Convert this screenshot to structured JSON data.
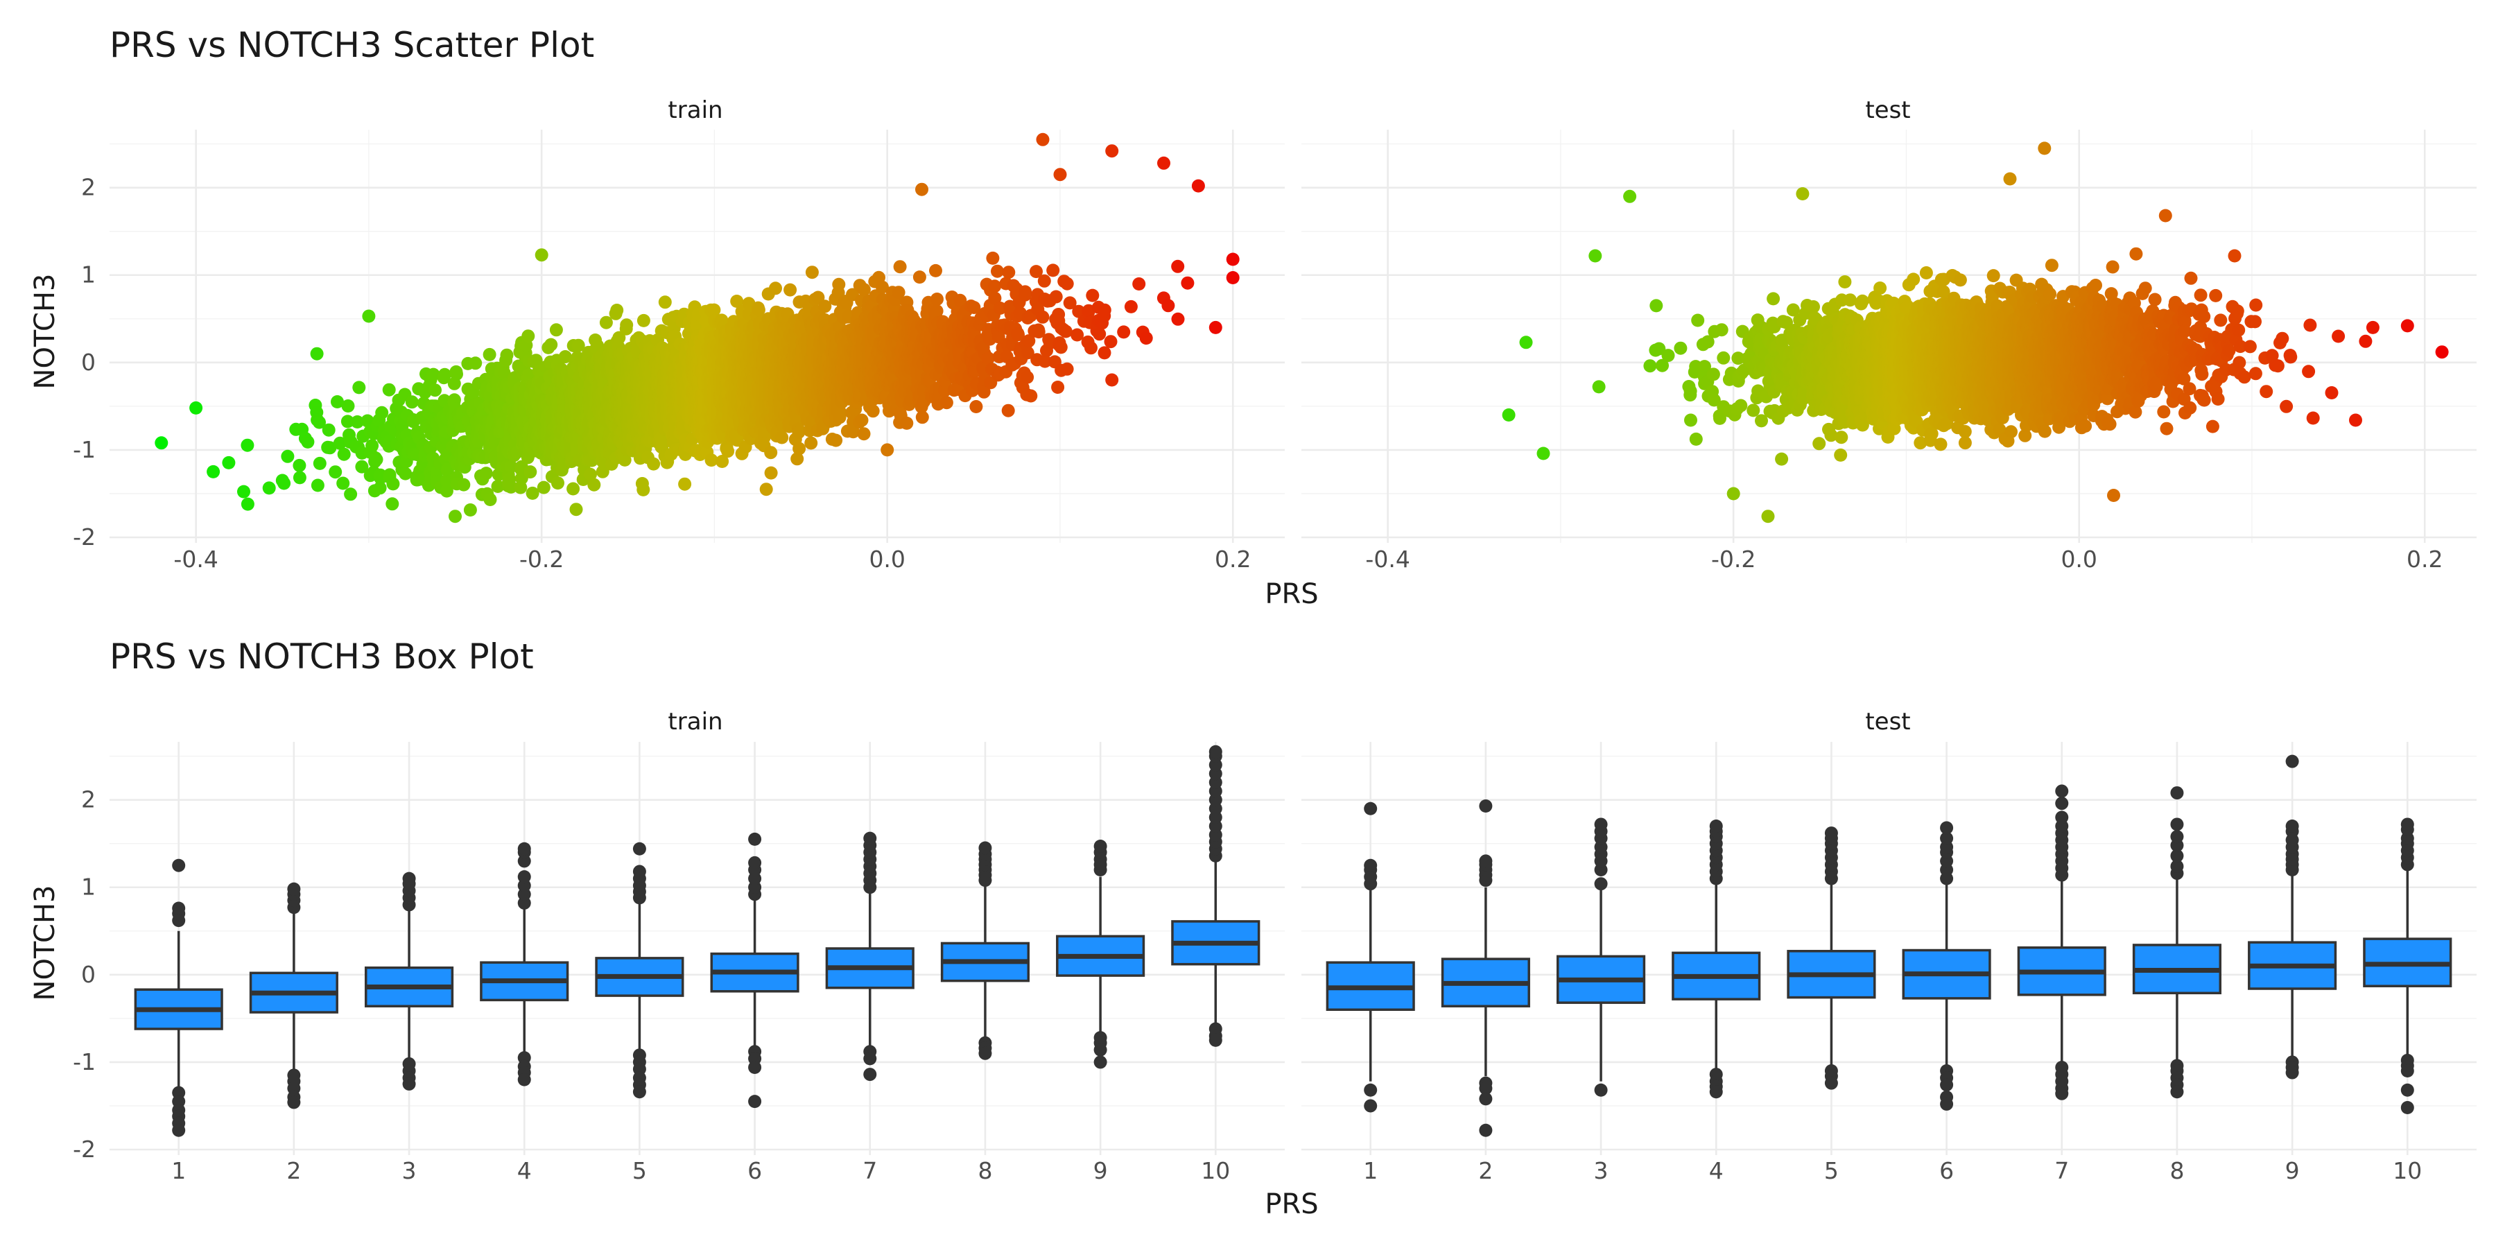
{
  "chart_data": [
    {
      "type": "scatter",
      "title": "PRS vs NOTCH3 Scatter Plot",
      "xlabel": "PRS",
      "ylabel": "NOTCH3",
      "xlim": [
        -0.45,
        0.23
      ],
      "ylim": [
        -2.0,
        2.6
      ],
      "x_ticks": [
        "-0.4",
        "-0.2",
        "0.0",
        "0.2"
      ],
      "y_ticks": [
        "-2",
        "-1",
        "0",
        "1",
        "2"
      ],
      "grid": true,
      "color_scale": {
        "low": "#00ee00",
        "mid": "#c8b400",
        "high": "#ee0000",
        "range": [
          -0.42,
          0.21
        ]
      },
      "panels": [
        {
          "label": "train",
          "trend": {
            "slope": 3.3,
            "intercept": 0.0
          },
          "x_center": -0.1,
          "x_spread": 0.085,
          "y_spread": 0.33,
          "n_points": 4500,
          "points": [
            {
              "x": -0.42,
              "y": -0.92
            },
            {
              "x": -0.39,
              "y": -1.25
            },
            {
              "x": -0.4,
              "y": -0.52
            },
            {
              "x": -0.37,
              "y": -1.62
            },
            {
              "x": -0.3,
              "y": 0.53
            },
            {
              "x": -0.2,
              "y": 1.23
            },
            {
              "x": -0.25,
              "y": -1.76
            },
            {
              "x": -0.18,
              "y": -1.68
            },
            {
              "x": -0.07,
              "y": -1.45
            },
            {
              "x": 0.09,
              "y": 2.55
            },
            {
              "x": 0.13,
              "y": 2.42
            },
            {
              "x": 0.16,
              "y": 2.28
            },
            {
              "x": 0.18,
              "y": 2.02
            },
            {
              "x": 0.2,
              "y": 1.18
            },
            {
              "x": 0.2,
              "y": 0.97
            },
            {
              "x": 0.19,
              "y": 0.4
            },
            {
              "x": 0.1,
              "y": 2.15
            },
            {
              "x": 0.02,
              "y": 1.98
            },
            {
              "x": 0.0,
              "y": -1.0
            },
            {
              "x": 0.13,
              "y": -0.2
            },
            {
              "x": 0.07,
              "y": -0.55
            },
            {
              "x": -0.33,
              "y": 0.1
            },
            {
              "x": -0.35,
              "y": -1.35
            }
          ]
        },
        {
          "label": "test",
          "trend": {
            "slope": 0.9,
            "intercept": 0.03
          },
          "x_center": -0.06,
          "x_spread": 0.062,
          "y_spread": 0.32,
          "n_points": 3800,
          "points": [
            {
              "x": -0.33,
              "y": -0.6
            },
            {
              "x": -0.31,
              "y": -1.04
            },
            {
              "x": -0.26,
              "y": 1.9
            },
            {
              "x": -0.16,
              "y": 1.93
            },
            {
              "x": -0.18,
              "y": -1.76
            },
            {
              "x": -0.2,
              "y": -1.5
            },
            {
              "x": -0.02,
              "y": 2.45
            },
            {
              "x": -0.04,
              "y": 2.1
            },
            {
              "x": 0.02,
              "y": -1.52
            },
            {
              "x": 0.21,
              "y": 0.12
            },
            {
              "x": 0.19,
              "y": 0.42
            },
            {
              "x": 0.17,
              "y": 0.4
            },
            {
              "x": 0.16,
              "y": -0.66
            },
            {
              "x": 0.15,
              "y": 0.3
            },
            {
              "x": -0.28,
              "y": 1.22
            },
            {
              "x": -0.32,
              "y": 0.23
            },
            {
              "x": 0.05,
              "y": 1.68
            },
            {
              "x": 0.09,
              "y": 1.22
            }
          ]
        }
      ]
    },
    {
      "type": "box",
      "title": "PRS vs NOTCH3 Box Plot",
      "xlabel": "PRS",
      "ylabel": "NOTCH3",
      "categories": [
        "1",
        "2",
        "3",
        "4",
        "5",
        "6",
        "7",
        "8",
        "9",
        "10"
      ],
      "ylim": [
        -2.0,
        2.6
      ],
      "y_ticks": [
        "-2",
        "-1",
        "0",
        "1",
        "2"
      ],
      "grid": true,
      "box_color": "#1e90ff",
      "panels": [
        {
          "label": "train",
          "boxes": [
            {
              "q1": -0.62,
              "median": -0.4,
              "q3": -0.17,
              "whisker_low": -1.28,
              "whisker_high": 0.5,
              "outliers": [
                -1.35,
                -1.45,
                -1.55,
                -1.62,
                -1.7,
                -1.78,
                0.62,
                0.7,
                0.76,
                1.25
              ]
            },
            {
              "q1": -0.43,
              "median": -0.21,
              "q3": 0.02,
              "whisker_low": -1.1,
              "whisker_high": 0.7,
              "outliers": [
                -1.15,
                -1.22,
                -1.3,
                -1.4,
                -1.46,
                0.77,
                0.85,
                0.92,
                0.98
              ]
            },
            {
              "q1": -0.36,
              "median": -0.14,
              "q3": 0.08,
              "whisker_low": -0.98,
              "whisker_high": 0.74,
              "outliers": [
                -1.02,
                -1.1,
                -1.18,
                -1.25,
                0.8,
                0.88,
                0.96,
                1.04,
                1.1
              ]
            },
            {
              "q1": -0.29,
              "median": -0.07,
              "q3": 0.14,
              "whisker_low": -0.92,
              "whisker_high": 0.78,
              "outliers": [
                -0.95,
                -1.05,
                -1.12,
                -1.2,
                0.82,
                0.92,
                1.02,
                1.12,
                1.3,
                1.4,
                1.44
              ]
            },
            {
              "q1": -0.24,
              "median": -0.02,
              "q3": 0.19,
              "whisker_low": -0.88,
              "whisker_high": 0.82,
              "outliers": [
                -0.92,
                -1.0,
                -1.08,
                -1.18,
                -1.26,
                -1.34,
                0.88,
                0.95,
                1.02,
                1.1,
                1.18,
                1.44
              ]
            },
            {
              "q1": -0.19,
              "median": 0.03,
              "q3": 0.24,
              "whisker_low": -0.84,
              "whisker_high": 0.86,
              "outliers": [
                -0.88,
                -0.96,
                -1.06,
                -1.45,
                0.92,
                1.0,
                1.1,
                1.2,
                1.28,
                1.55
              ]
            },
            {
              "q1": -0.15,
              "median": 0.08,
              "q3": 0.3,
              "whisker_low": -0.82,
              "whisker_high": 0.94,
              "outliers": [
                -0.88,
                -0.96,
                -1.14,
                1.0,
                1.08,
                1.16,
                1.24,
                1.32,
                1.4,
                1.48,
                1.56
              ]
            },
            {
              "q1": -0.07,
              "median": 0.15,
              "q3": 0.36,
              "whisker_low": -0.74,
              "whisker_high": 1.02,
              "outliers": [
                -0.78,
                -0.84,
                -0.9,
                1.08,
                1.14,
                1.2,
                1.26,
                1.32,
                1.38,
                1.45
              ]
            },
            {
              "q1": -0.01,
              "median": 0.21,
              "q3": 0.44,
              "whisker_low": -0.68,
              "whisker_high": 1.12,
              "outliers": [
                -0.72,
                -0.78,
                -0.86,
                -1.0,
                1.2,
                1.26,
                1.32,
                1.4,
                1.47
              ]
            },
            {
              "q1": 0.12,
              "median": 0.36,
              "q3": 0.61,
              "whisker_low": -0.58,
              "whisker_high": 1.3,
              "outliers": [
                -0.62,
                -0.7,
                -0.75,
                1.36,
                1.44,
                1.52,
                1.6,
                1.7,
                1.8,
                1.9,
                2.0,
                2.1,
                2.2,
                2.3,
                2.4,
                2.5,
                2.55
              ]
            }
          ]
        },
        {
          "label": "test",
          "boxes": [
            {
              "q1": -0.4,
              "median": -0.15,
              "q3": 0.14,
              "whisker_low": -1.22,
              "whisker_high": 0.98,
              "outliers": [
                -1.32,
                -1.5,
                1.04,
                1.12,
                1.2,
                1.25,
                1.9
              ]
            },
            {
              "q1": -0.36,
              "median": -0.1,
              "q3": 0.18,
              "whisker_low": -1.16,
              "whisker_high": 1.0,
              "outliers": [
                -1.24,
                -1.3,
                -1.42,
                -1.78,
                1.08,
                1.14,
                1.2,
                1.26,
                1.3,
                1.93
              ]
            },
            {
              "q1": -0.32,
              "median": -0.06,
              "q3": 0.21,
              "whisker_low": -1.22,
              "whisker_high": 1.0,
              "outliers": [
                -1.32,
                1.04,
                1.2,
                1.3,
                1.38,
                1.46,
                1.56,
                1.64,
                1.72
              ]
            },
            {
              "q1": -0.28,
              "median": -0.02,
              "q3": 0.25,
              "whisker_low": -1.08,
              "whisker_high": 1.05,
              "outliers": [
                -1.14,
                -1.22,
                -1.28,
                -1.34,
                1.1,
                1.18,
                1.26,
                1.34,
                1.42,
                1.5,
                1.58,
                1.64,
                1.7
              ]
            },
            {
              "q1": -0.26,
              "median": 0.0,
              "q3": 0.27,
              "whisker_low": -1.05,
              "whisker_high": 1.06,
              "outliers": [
                -1.1,
                -1.16,
                -1.24,
                1.1,
                1.18,
                1.26,
                1.34,
                1.42,
                1.5,
                1.56,
                1.62
              ]
            },
            {
              "q1": -0.27,
              "median": 0.01,
              "q3": 0.28,
              "whisker_low": -1.05,
              "whisker_high": 1.05,
              "outliers": [
                -1.1,
                -1.18,
                -1.26,
                -1.4,
                -1.48,
                1.1,
                1.2,
                1.3,
                1.4,
                1.46,
                1.56,
                1.68
              ]
            },
            {
              "q1": -0.23,
              "median": 0.03,
              "q3": 0.31,
              "whisker_low": -1.02,
              "whisker_high": 1.08,
              "outliers": [
                -1.06,
                -1.14,
                -1.22,
                -1.3,
                -1.36,
                1.14,
                1.22,
                1.3,
                1.38,
                1.46,
                1.54,
                1.62,
                1.7,
                1.8,
                1.96,
                2.1
              ]
            },
            {
              "q1": -0.21,
              "median": 0.05,
              "q3": 0.34,
              "whisker_low": -1.0,
              "whisker_high": 1.1,
              "outliers": [
                -1.04,
                -1.1,
                -1.18,
                -1.26,
                -1.34,
                1.16,
                1.24,
                1.36,
                1.48,
                1.58,
                1.72,
                2.08
              ]
            },
            {
              "q1": -0.16,
              "median": 0.1,
              "q3": 0.37,
              "whisker_low": -0.96,
              "whisker_high": 1.14,
              "outliers": [
                -1.0,
                -1.06,
                -1.12,
                1.2,
                1.26,
                1.32,
                1.38,
                1.46,
                1.54,
                1.64,
                1.7,
                2.44
              ]
            },
            {
              "q1": -0.13,
              "median": 0.12,
              "q3": 0.41,
              "whisker_low": -0.94,
              "whisker_high": 1.2,
              "outliers": [
                -0.98,
                -1.04,
                -1.1,
                -1.32,
                -1.52,
                1.26,
                1.34,
                1.42,
                1.5,
                1.56,
                1.66,
                1.72
              ]
            }
          ]
        }
      ]
    }
  ]
}
